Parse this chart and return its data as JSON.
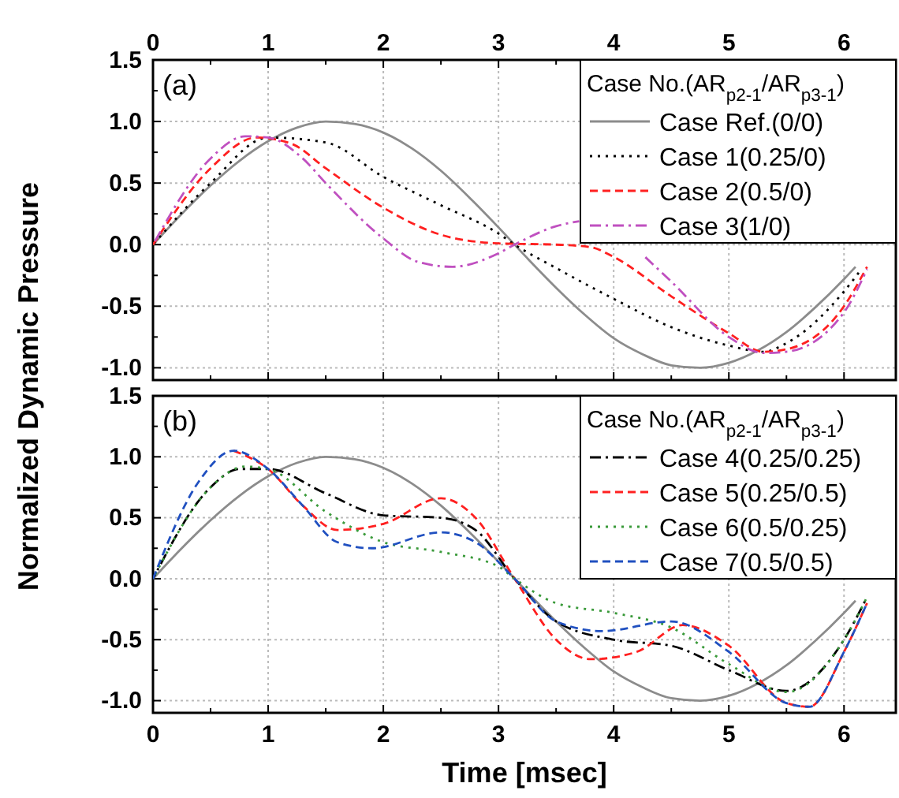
{
  "chart_data": [
    {
      "type": "line",
      "ylabel": "Normalized Dynamic Pressure",
      "legend_title": "Case No.(AR$_{p2-1}$/AR$_{p3-1}$)",
      "legend": "top right",
      "grid": true,
      "tick_labels": "y",
      "annotations": [
        "(a)"
      ],
      "xlim": [
        0,
        6.45
      ],
      "ylim": [
        -1.1,
        1.5
      ],
      "x2lim": [
        0,
        6.45
      ],
      "xticks": [
        0,
        {
          "value": 0.5,
          "label": null
        },
        1,
        {
          "value": 1.5,
          "label": null
        },
        2,
        {
          "value": 2.5,
          "label": null
        },
        3,
        {
          "value": 3.5,
          "label": null
        },
        4,
        {
          "value": 4.5,
          "label": null
        },
        5,
        {
          "value": 5.5,
          "label": null
        },
        6
      ],
      "x2ticks": [
        0,
        {
          "value": 0.5,
          "label": null
        },
        1,
        {
          "value": 1.5,
          "label": null
        },
        2,
        {
          "value": 2.5,
          "label": null
        },
        3,
        {
          "value": 3.5,
          "label": null
        },
        4,
        {
          "value": 4.5,
          "label": null
        },
        5,
        {
          "value": 5.5,
          "label": null
        },
        6
      ],
      "yticks": [
        {
          "value": -1,
          "label": "-1.0"
        },
        {
          "value": -0.75,
          "label": null
        },
        {
          "value": -0.5,
          "label": "-0.5"
        },
        {
          "value": -0.25,
          "label": null
        },
        {
          "value": 0,
          "label": "0.0"
        },
        {
          "value": 0.25,
          "label": null
        },
        {
          "value": 0.5,
          "label": "0.5"
        },
        {
          "value": 0.75,
          "label": null
        },
        {
          "value": 1,
          "label": "1.0"
        },
        {
          "value": 1.25,
          "label": null
        },
        {
          "value": 1.5,
          "label": "1.5"
        }
      ],
      "series": [
        {
          "name": "Case Ref.(0/0)",
          "color": "#8c8c8c",
          "line_style": "solid",
          "x": [
            0,
            0.25,
            0.5,
            0.75,
            1,
            1.25,
            1.5,
            1.75,
            2,
            2.25,
            2.5,
            2.75,
            3,
            3.25,
            3.5,
            3.75,
            4,
            4.25,
            4.5,
            4.75,
            5,
            5.25,
            5.5,
            5.75,
            6,
            6.1
          ],
          "values": [
            0,
            0.25,
            0.48,
            0.68,
            0.84,
            0.95,
            1,
            0.98,
            0.91,
            0.78,
            0.6,
            0.38,
            0.14,
            -0.11,
            -0.35,
            -0.57,
            -0.76,
            -0.89,
            -0.98,
            -1,
            -0.96,
            -0.86,
            -0.71,
            -0.51,
            -0.28,
            -0.18
          ]
        },
        {
          "name": "Case 1(0.25/0)",
          "color": "#000000",
          "line_style": "dotted",
          "x": [
            0,
            0.5,
            1,
            1.5,
            2,
            2.5,
            3,
            3.14,
            3.5,
            4,
            4.5,
            5,
            5.3,
            5.5,
            6,
            6.15
          ],
          "values": [
            0,
            0.5,
            0.87,
            0.83,
            0.55,
            0.32,
            0.09,
            0,
            -0.19,
            -0.44,
            -0.67,
            -0.82,
            -0.87,
            -0.8,
            -0.38,
            -0.2
          ]
        },
        {
          "name": "Case 2(0.5/0)",
          "color": "#ff2020",
          "line_style": "dashed",
          "x": [
            0,
            0.5,
            0.9,
            1.2,
            1.5,
            2,
            2.5,
            3,
            3.5,
            3.8,
            4,
            4.5,
            5,
            5.3,
            5.5,
            6,
            6.2
          ],
          "values": [
            0,
            0.62,
            0.87,
            0.82,
            0.62,
            0.3,
            0.08,
            0.01,
            0,
            -0.02,
            -0.1,
            -0.42,
            -0.72,
            -0.87,
            -0.85,
            -0.5,
            -0.18
          ]
        },
        {
          "name": "Case 3(1/0)",
          "color": "#c050c0",
          "line_style": "dashdot",
          "x": [
            0,
            0.5,
            0.8,
            1,
            1.3,
            1.5,
            2,
            2.3,
            2.6,
            3,
            3.14,
            3.5,
            3.7,
            4,
            4.25,
            4.5,
            5,
            5.3,
            5.5,
            6,
            6.2
          ],
          "values": [
            0,
            0.7,
            0.88,
            0.87,
            0.7,
            0.5,
            0.05,
            -0.14,
            -0.18,
            -0.07,
            0,
            0.15,
            0.19,
            null,
            -0.08,
            -0.3,
            -0.75,
            -0.88,
            -0.87,
            -0.55,
            -0.2
          ]
        }
      ]
    },
    {
      "type": "line",
      "xlabel": "Time [msec]",
      "legend_title": "Case No.(AR$_{p2-1}$/AR$_{p3-1}$)",
      "legend": "top right",
      "grid": true,
      "annotations": [
        "(b)"
      ],
      "xlim": [
        0,
        6.45
      ],
      "ylim": [
        -1.1,
        1.5
      ],
      "xticks": [
        0,
        {
          "value": 0.5,
          "label": null
        },
        1,
        {
          "value": 1.5,
          "label": null
        },
        2,
        {
          "value": 2.5,
          "label": null
        },
        3,
        {
          "value": 3.5,
          "label": null
        },
        4,
        {
          "value": 4.5,
          "label": null
        },
        5,
        {
          "value": 5.5,
          "label": null
        },
        6
      ],
      "yticks": [
        {
          "value": -1,
          "label": "-1.0"
        },
        {
          "value": -0.75,
          "label": null
        },
        {
          "value": -0.5,
          "label": "-0.5"
        },
        {
          "value": -0.25,
          "label": null
        },
        {
          "value": 0,
          "label": "0.0"
        },
        {
          "value": 0.25,
          "label": null
        },
        {
          "value": 0.5,
          "label": "0.5"
        },
        {
          "value": 0.75,
          "label": null
        },
        {
          "value": 1,
          "label": "1.0"
        },
        {
          "value": 1.25,
          "label": null
        },
        {
          "value": 1.5,
          "label": "1.5"
        }
      ],
      "series": [
        {
          "color": "#8c8c8c",
          "line_style": "solid",
          "x": [
            0,
            0.25,
            0.5,
            0.75,
            1,
            1.25,
            1.5,
            1.75,
            2,
            2.25,
            2.5,
            2.75,
            3,
            3.25,
            3.5,
            3.75,
            4,
            4.25,
            4.5,
            4.75,
            5,
            5.25,
            5.5,
            5.75,
            6,
            6.1
          ],
          "values": [
            0,
            0.25,
            0.48,
            0.68,
            0.84,
            0.95,
            1,
            0.98,
            0.91,
            0.78,
            0.6,
            0.38,
            0.14,
            -0.11,
            -0.35,
            -0.57,
            -0.76,
            -0.89,
            -0.98,
            -1,
            -0.96,
            -0.86,
            -0.71,
            -0.51,
            -0.28,
            -0.18
          ]
        },
        {
          "name": "Case 4(0.25/0.25)",
          "color": "#000000",
          "line_style": "dashdot",
          "x": [
            0,
            0.5,
            0.75,
            1,
            1.5,
            2,
            2.5,
            2.8,
            3.14,
            3.5,
            4,
            4.5,
            5,
            5.5,
            6,
            6.2
          ],
          "values": [
            0,
            0.75,
            0.9,
            0.9,
            0.7,
            0.52,
            0.5,
            0.4,
            0,
            -0.35,
            -0.5,
            -0.55,
            -0.75,
            -0.92,
            -0.5,
            -0.15
          ]
        },
        {
          "name": "Case 5(0.25/0.5)",
          "color": "#ff2020",
          "line_style": "dashed",
          "x": [
            0.7,
            1,
            1.3,
            1.6,
            2,
            2.5,
            2.8,
            3.14,
            3.5,
            3.8,
            4.2,
            4.6,
            5,
            5.5,
            5.7,
            6,
            6.2
          ],
          "values": [
            1.05,
            0.9,
            0.6,
            0.4,
            0.45,
            0.66,
            0.5,
            0,
            -0.5,
            -0.66,
            -0.6,
            -0.38,
            -0.55,
            -1.02,
            -1.05,
            -0.6,
            -0.2
          ]
        },
        {
          "name": "Case 6(0.5/0.25)",
          "color": "#3a9a3a",
          "line_style": "dotted",
          "x": [
            0,
            0.5,
            0.8,
            1,
            1.5,
            2,
            2.5,
            3,
            3.14,
            3.5,
            4,
            4.5,
            5,
            5.5,
            6,
            6.2
          ],
          "values": [
            0,
            0.75,
            0.92,
            0.9,
            0.55,
            0.3,
            0.22,
            0.1,
            0,
            -0.2,
            -0.28,
            -0.4,
            -0.7,
            -0.93,
            -0.5,
            -0.15
          ]
        },
        {
          "name": "Case 7(0.5/0.5)",
          "color": "#2050c0",
          "line_style": "dashed",
          "x": [
            0,
            0.4,
            0.7,
            1,
            1.3,
            1.6,
            1.9,
            2.5,
            2.8,
            3.14,
            3.5,
            3.9,
            4.5,
            5,
            5.5,
            5.7,
            6,
            6.2
          ],
          "values": [
            0,
            0.8,
            1.05,
            0.9,
            0.6,
            0.3,
            0.25,
            0.38,
            0.3,
            0,
            -0.35,
            -0.43,
            -0.35,
            -0.6,
            -1.02,
            -1.05,
            -0.6,
            -0.2
          ]
        }
      ]
    }
  ]
}
